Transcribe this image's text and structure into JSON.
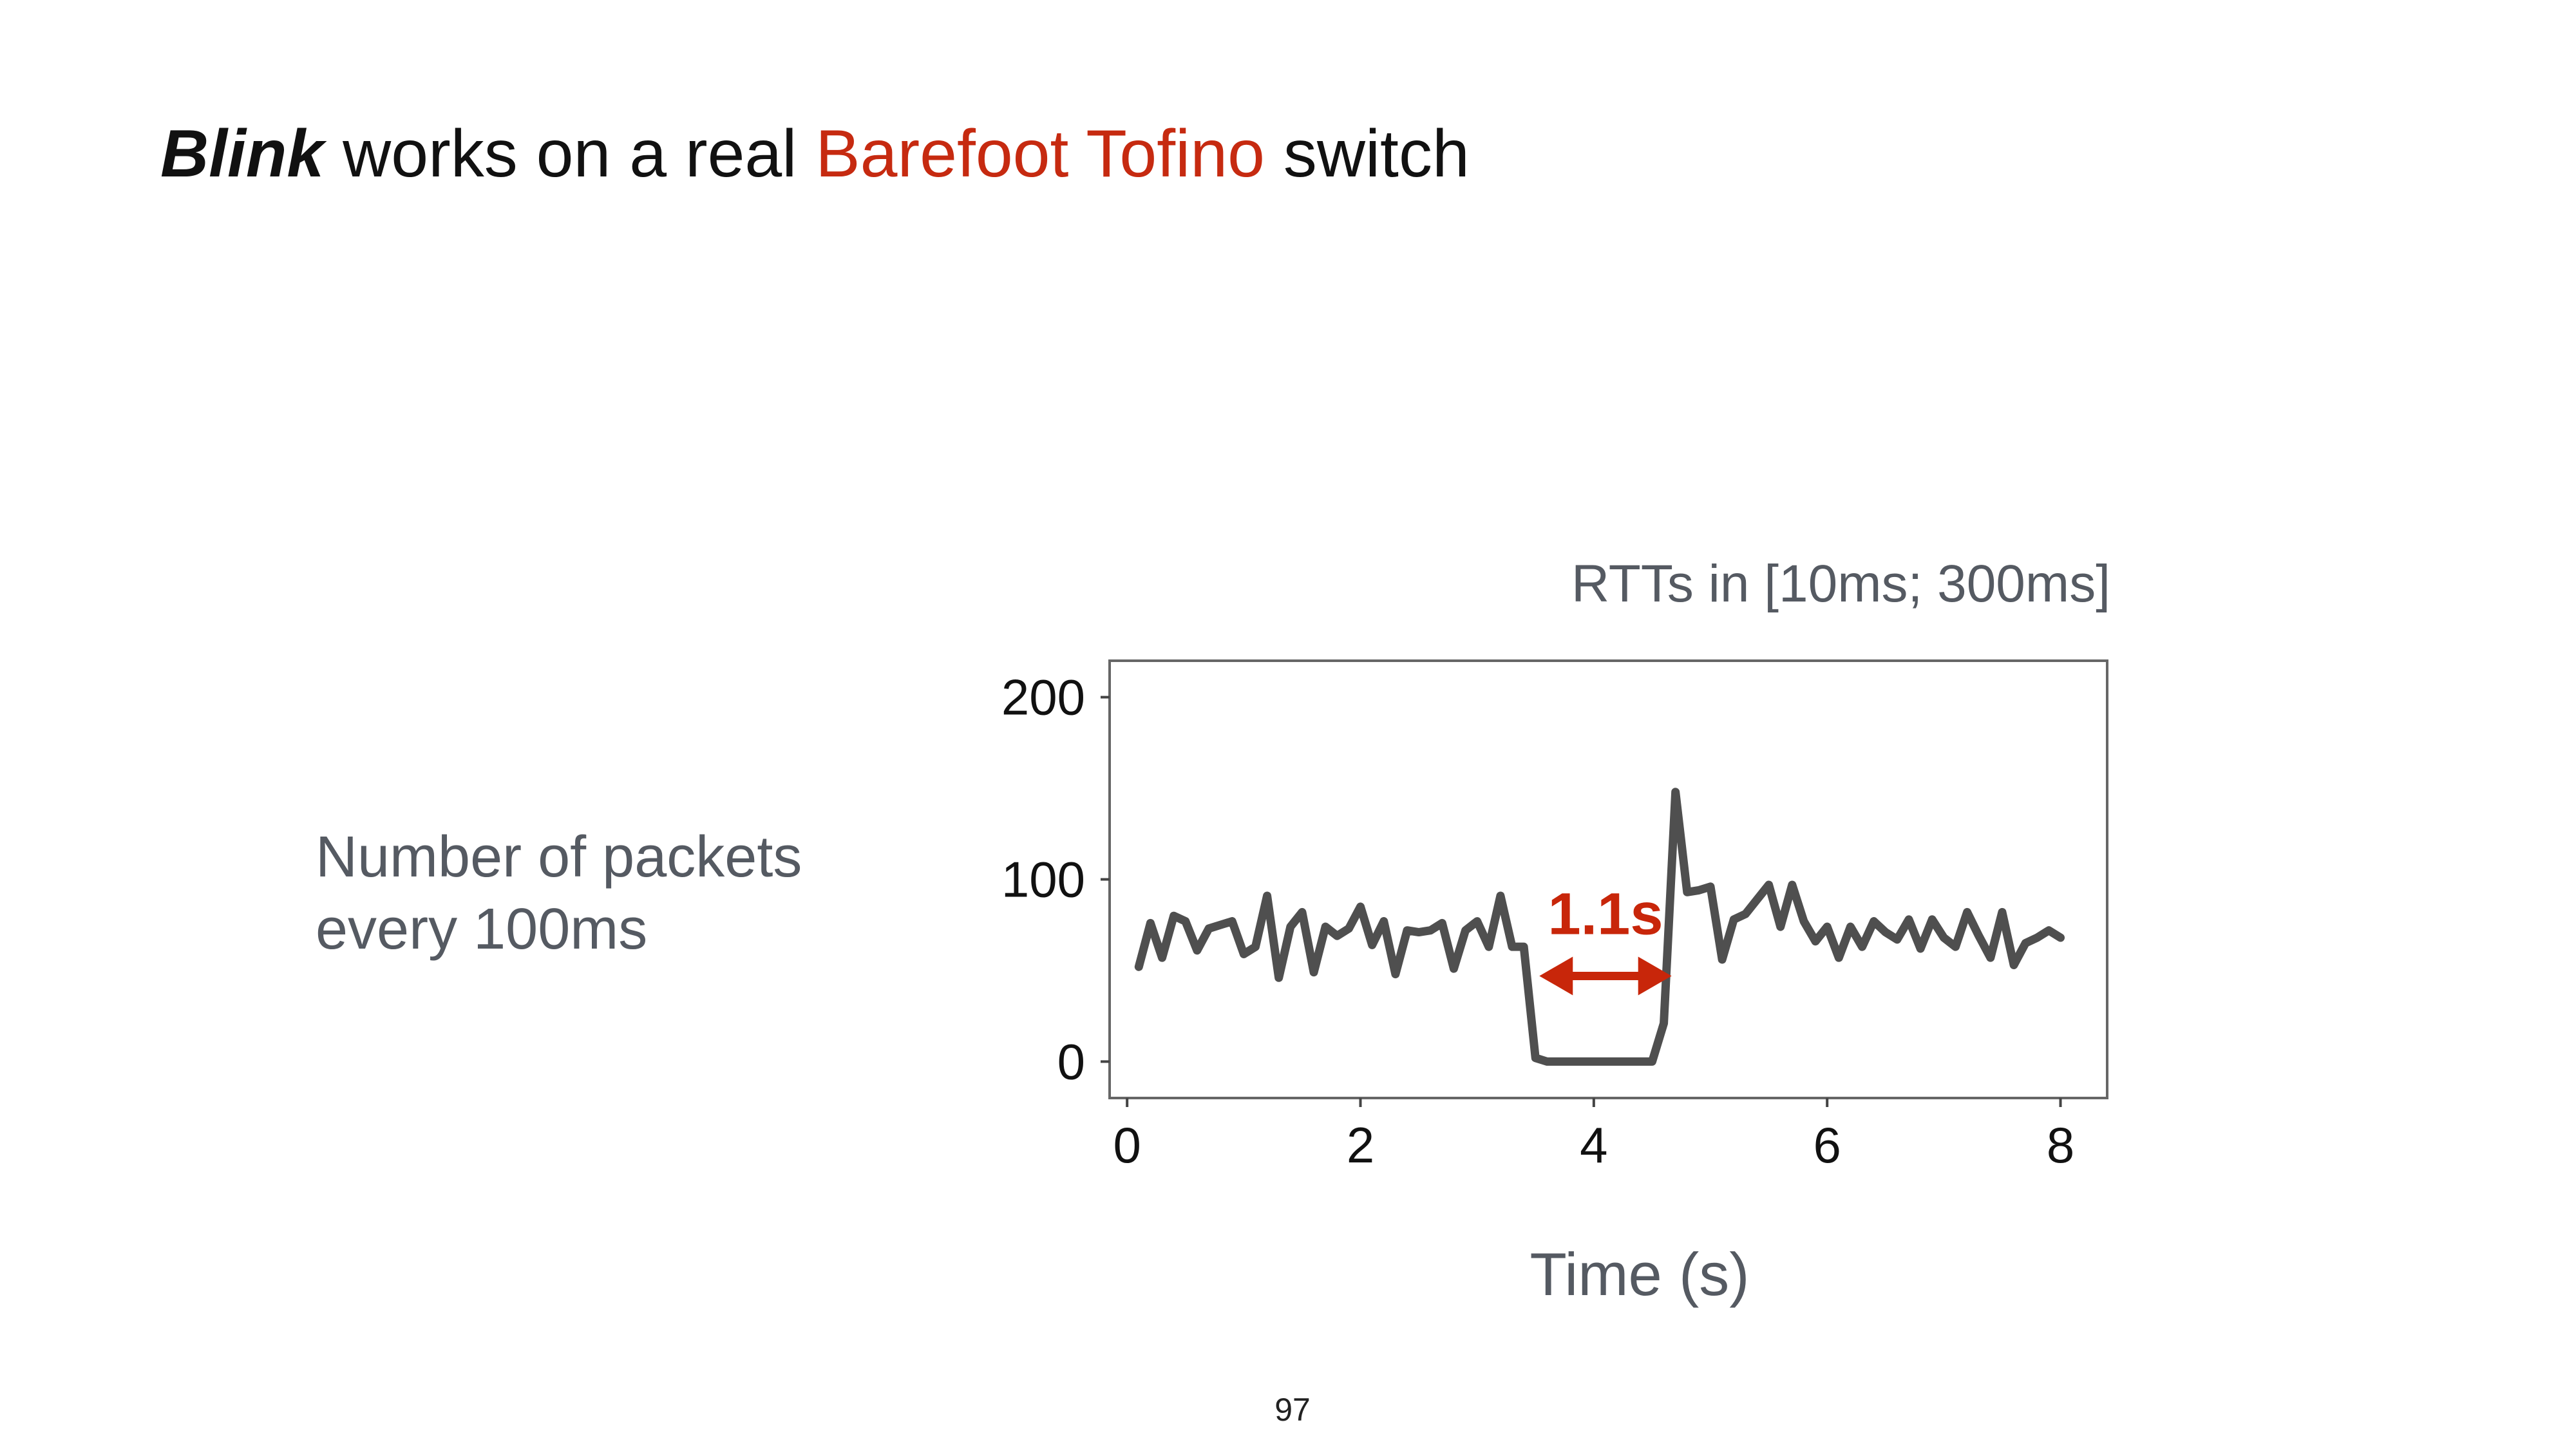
{
  "title": {
    "emphasis": "Blink",
    "middle": " works on a real ",
    "highlight": "Barefoot Tofino",
    "end": " switch"
  },
  "y_description": [
    "Number of packets",
    "every 100ms"
  ],
  "annotation_note": "RTTs in [10ms; 300ms]",
  "page_number": "97",
  "colors": {
    "highlight": "#c62a10",
    "line": "#4f4f4f",
    "annotation": "#c8260a",
    "text": "#555a62"
  },
  "chart_data": {
    "type": "line",
    "xlabel": "Time (s)",
    "ylabel": "",
    "xlim": [
      -0.15,
      8.4
    ],
    "ylim": [
      -20,
      220
    ],
    "xticks": [
      "0",
      "2",
      "4",
      "6",
      "8"
    ],
    "yticks": [
      "0",
      "100",
      "200"
    ],
    "grid": false,
    "x": [
      0.1,
      0.2,
      0.3,
      0.4,
      0.5,
      0.6,
      0.7,
      0.8,
      0.9,
      1.0,
      1.1,
      1.2,
      1.3,
      1.4,
      1.5,
      1.6,
      1.7,
      1.8,
      1.9,
      2.0,
      2.1,
      2.2,
      2.3,
      2.4,
      2.5,
      2.6,
      2.7,
      2.8,
      2.9,
      3.0,
      3.1,
      3.2,
      3.3,
      3.4,
      3.5,
      3.6,
      3.7,
      3.8,
      3.9,
      4.0,
      4.1,
      4.2,
      4.3,
      4.4,
      4.5,
      4.6,
      4.7,
      4.8,
      4.9,
      5.0,
      5.1,
      5.2,
      5.3,
      5.4,
      5.5,
      5.6,
      5.7,
      5.8,
      5.9,
      6.0,
      6.1,
      6.2,
      6.3,
      6.4,
      6.5,
      6.6,
      6.7,
      6.8,
      6.9,
      7.0,
      7.1,
      7.2,
      7.3,
      7.4,
      7.5,
      7.6,
      7.7,
      7.8,
      7.9,
      8.0
    ],
    "y": [
      52,
      76,
      57,
      80,
      77,
      61,
      73,
      75,
      77,
      59,
      63,
      91,
      46,
      74,
      82,
      49,
      74,
      69,
      73,
      85,
      64,
      77,
      48,
      72,
      71,
      72,
      76,
      51,
      72,
      77,
      63,
      91,
      63,
      63,
      2,
      0,
      0,
      0,
      0,
      0,
      0,
      0,
      0,
      0,
      0,
      21,
      148,
      93,
      94,
      96,
      56,
      78,
      81,
      89,
      97,
      74,
      97,
      77,
      66,
      74,
      57,
      74,
      63,
      77,
      71,
      67,
      78,
      62,
      78,
      68,
      63,
      82,
      69,
      57,
      82,
      53,
      65,
      68,
      72,
      68
    ],
    "annotation": {
      "label": "1.1s",
      "from_x": 3.5,
      "to_x": 4.7,
      "at_y": 47
    }
  }
}
